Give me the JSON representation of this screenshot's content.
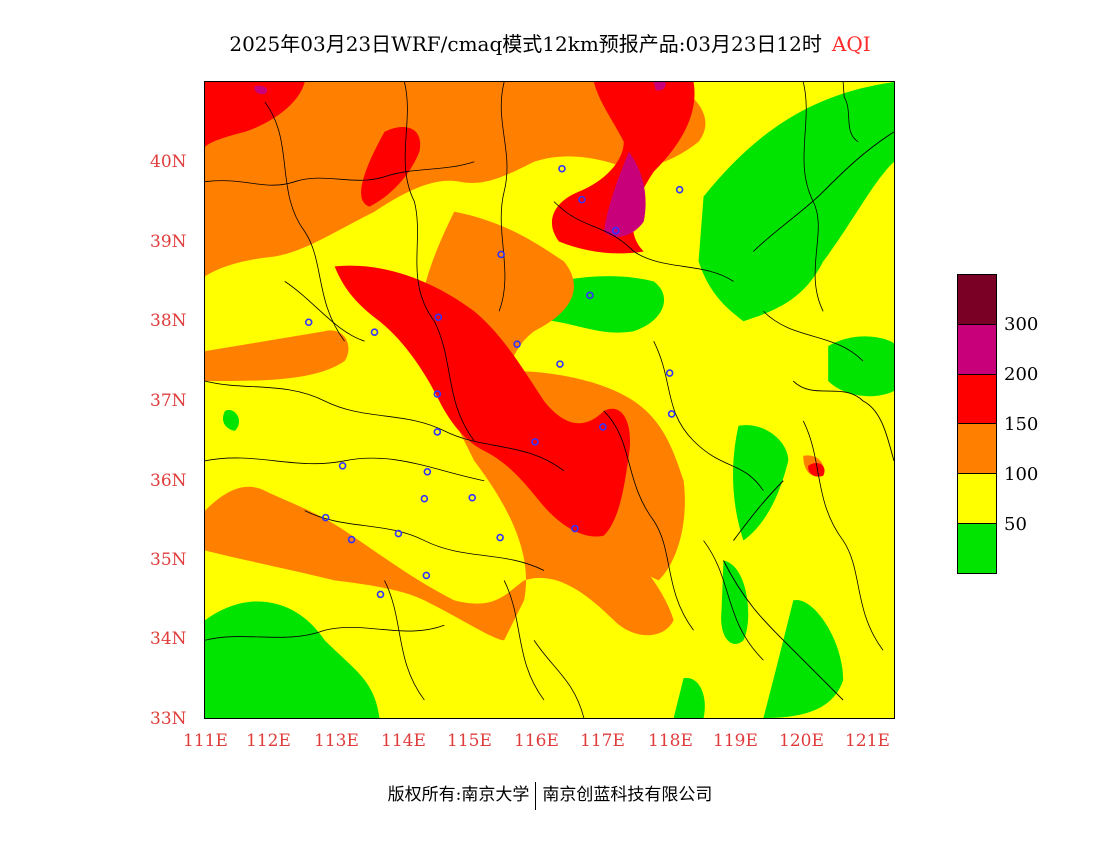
{
  "title": {
    "text": "2025年03月23日WRF/cmaq模式12km预报产品:03月23日12时",
    "variable": "AQI"
  },
  "axes": {
    "lat_labels": [
      "40N",
      "39N",
      "38N",
      "37N",
      "36N",
      "35N",
      "34N",
      "33N"
    ],
    "lon_labels": [
      "111E",
      "112E",
      "113E",
      "114E",
      "115E",
      "116E",
      "117E",
      "118E",
      "119E",
      "120E",
      "121E"
    ],
    "label_color": "#e03c3c"
  },
  "legend": {
    "colors": [
      "#7a0026",
      "#c8007a",
      "#ff0000",
      "#ff7f00",
      "#ffff00",
      "#00e400"
    ],
    "labels": [
      "300",
      "200",
      "150",
      "100",
      "50"
    ]
  },
  "footer": {
    "left": "版权所有:南京大学",
    "right": "南京创蓝科技有限公司"
  },
  "colors": {
    "good": "#00e400",
    "moderate": "#ffff00",
    "usg": "#ff7f00",
    "unhealthy": "#ff0000",
    "very_unhealthy": "#c8007a",
    "hazardous": "#7a0026",
    "station_marker": "#3333ff"
  }
}
